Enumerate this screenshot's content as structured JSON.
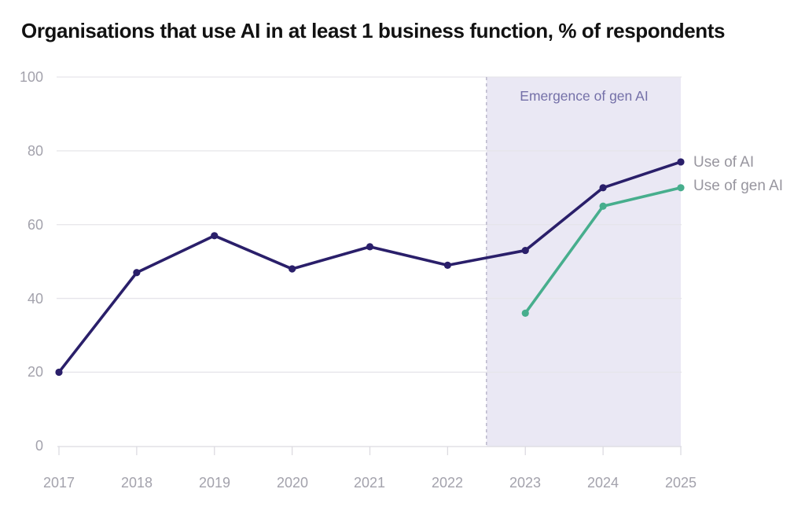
{
  "title": "Organisations that use AI in at least 1 business function, % of respondents",
  "annotation": {
    "label": "Emergence of gen AI"
  },
  "legend": {
    "items": [
      {
        "label": "Use of AI"
      },
      {
        "label": "Use of gen AI"
      }
    ]
  },
  "axes": {
    "y_ticks": [
      "100",
      "80",
      "60",
      "40",
      "20",
      "0"
    ],
    "x_ticks": [
      "2017",
      "2018",
      "2019",
      "2020",
      "2021",
      "2022",
      "2023",
      "2024",
      "2025"
    ]
  },
  "colors": {
    "title_text": "#121212",
    "ai_line": "#2A1F6A",
    "gen_ai_line": "#47AE8D",
    "region_fill": "#EAE8F4",
    "region_border": "#B7B4C8",
    "annotation_text": "#7470A8",
    "axis_text": "#A3A2AC",
    "legend_text": "#98969F",
    "gridline": "#E6E5EA",
    "axis_line": "#DCDBE1"
  },
  "chart_data": {
    "type": "line",
    "title": "Organisations that use AI in at least 1 business function, % of respondents",
    "xlabel": "",
    "ylabel": "% of respondents",
    "ylim": [
      0,
      100
    ],
    "y_tick_values": [
      0,
      20,
      40,
      60,
      80,
      100
    ],
    "x_tick_values": [
      2017,
      2018,
      2019,
      2020,
      2021,
      2022,
      2023,
      2024,
      2025
    ],
    "grid": "horizontal",
    "legend_position": "right of line ends",
    "series": [
      {
        "name": "Use of AI",
        "color": "#2A1F6A",
        "x": [
          2017,
          2018,
          2019,
          2020,
          2021,
          2022,
          2023,
          2024,
          2025
        ],
        "values": [
          20,
          47,
          57,
          48,
          54,
          49,
          53,
          70,
          77
        ]
      },
      {
        "name": "Use of gen AI",
        "color": "#47AE8D",
        "x": [
          2023,
          2024,
          2025
        ],
        "values": [
          36,
          65,
          70
        ]
      }
    ],
    "shaded_region": {
      "label": "Emergence of gen AI",
      "x_start": 2022.5,
      "x_end": 2025,
      "fill": "#EAE8F4",
      "border_style": "dashed",
      "border_color": "#B7B4C8"
    }
  }
}
